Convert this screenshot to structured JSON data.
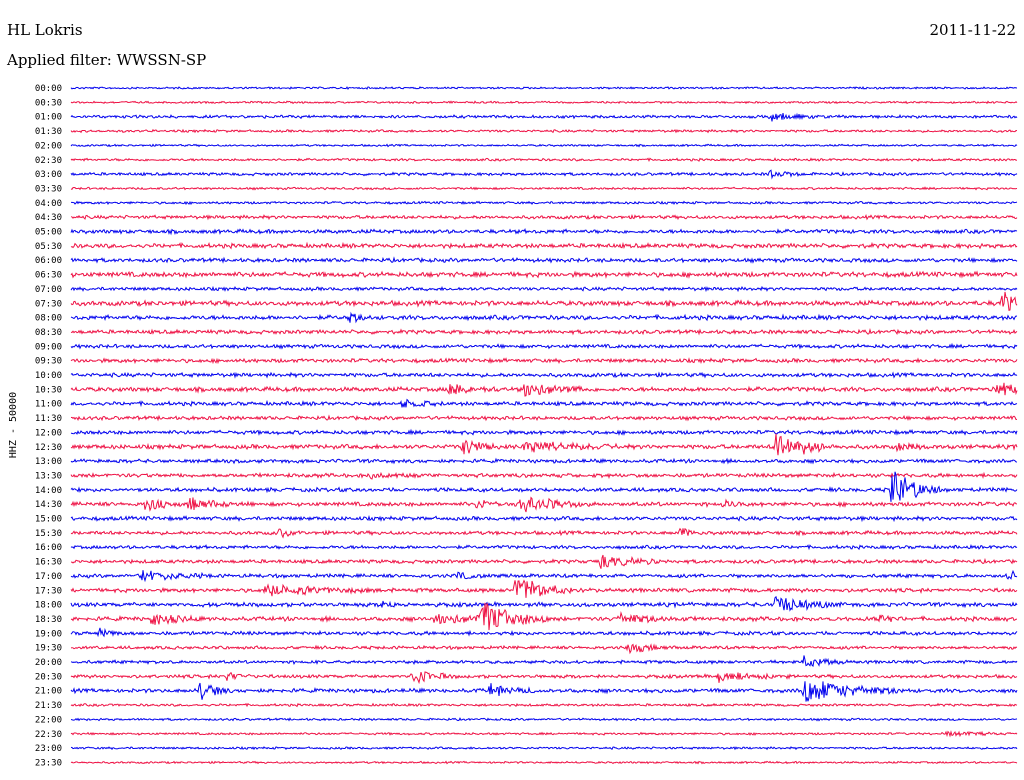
{
  "header": {
    "station": "HL Lokris",
    "date": "2011-11-22",
    "filter_line": "Applied filter: WWSSN-SP"
  },
  "chart_data": {
    "type": "line",
    "chart_kind": "helicorder",
    "ylabel": "HHZ - 50000",
    "row_labels": [
      "00:00",
      "00:30",
      "01:00",
      "01:30",
      "02:00",
      "02:30",
      "03:00",
      "03:30",
      "04:00",
      "04:30",
      "05:00",
      "05:30",
      "06:00",
      "06:30",
      "07:00",
      "07:30",
      "08:00",
      "08:30",
      "09:00",
      "09:30",
      "10:00",
      "10:30",
      "11:00",
      "11:30",
      "12:00",
      "12:30",
      "13:00",
      "13:30",
      "14:00",
      "14:30",
      "15:00",
      "15:30",
      "16:00",
      "16:30",
      "17:00",
      "17:30",
      "18:00",
      "18:30",
      "19:00",
      "19:30",
      "20:00",
      "20:30",
      "21:00",
      "21:30",
      "22:00",
      "22:30",
      "23:00",
      "23:30"
    ],
    "colors": [
      "#0000ee",
      "#ee1144"
    ],
    "grid": false,
    "noise_level": [
      0.8,
      0.8,
      1.2,
      1.0,
      0.8,
      1.0,
      1.2,
      0.9,
      1.0,
      1.4,
      1.6,
      1.8,
      1.6,
      2.0,
      1.4,
      2.0,
      1.8,
      1.6,
      1.5,
      1.6,
      1.6,
      1.8,
      1.6,
      1.5,
      1.6,
      1.8,
      1.5,
      1.6,
      1.6,
      1.7,
      1.6,
      1.5,
      1.4,
      1.5,
      1.5,
      1.6,
      1.7,
      1.7,
      1.5,
      1.3,
      1.3,
      1.4,
      1.6,
      1.0,
      0.9,
      0.9,
      0.9,
      0.8
    ],
    "events": [
      {
        "row": 2,
        "pos": 0.74,
        "amp": 4,
        "dur": 0.02
      },
      {
        "row": 6,
        "pos": 0.74,
        "amp": 3,
        "dur": 0.015
      },
      {
        "row": 15,
        "pos": 0.985,
        "amp": 11,
        "dur": 0.01
      },
      {
        "row": 16,
        "pos": 0.295,
        "amp": 4,
        "dur": 0.01
      },
      {
        "row": 21,
        "pos": 0.4,
        "amp": 5,
        "dur": 0.02
      },
      {
        "row": 21,
        "pos": 0.48,
        "amp": 7,
        "dur": 0.025
      },
      {
        "row": 21,
        "pos": 0.98,
        "amp": 8,
        "dur": 0.015
      },
      {
        "row": 22,
        "pos": 0.35,
        "amp": 3,
        "dur": 0.02
      },
      {
        "row": 25,
        "pos": 0.415,
        "amp": 8,
        "dur": 0.015
      },
      {
        "row": 25,
        "pos": 0.48,
        "amp": 6,
        "dur": 0.04
      },
      {
        "row": 25,
        "pos": 0.745,
        "amp": 14,
        "dur": 0.025
      },
      {
        "row": 25,
        "pos": 0.875,
        "amp": 4,
        "dur": 0.01
      },
      {
        "row": 27,
        "pos": 0.315,
        "amp": 3,
        "dur": 0.02
      },
      {
        "row": 28,
        "pos": 0.868,
        "amp": 20,
        "dur": 0.02
      },
      {
        "row": 29,
        "pos": 0.08,
        "amp": 9,
        "dur": 0.01
      },
      {
        "row": 29,
        "pos": 0.125,
        "amp": 5,
        "dur": 0.025
      },
      {
        "row": 29,
        "pos": 0.43,
        "amp": 4,
        "dur": 0.015
      },
      {
        "row": 29,
        "pos": 0.475,
        "amp": 8,
        "dur": 0.03
      },
      {
        "row": 29,
        "pos": 0.69,
        "amp": 3,
        "dur": 0.01
      },
      {
        "row": 31,
        "pos": 0.22,
        "amp": 4,
        "dur": 0.01
      },
      {
        "row": 31,
        "pos": 0.645,
        "amp": 4,
        "dur": 0.01
      },
      {
        "row": 33,
        "pos": 0.56,
        "amp": 5,
        "dur": 0.03
      },
      {
        "row": 34,
        "pos": 0.075,
        "amp": 5,
        "dur": 0.03
      },
      {
        "row": 34,
        "pos": 0.41,
        "amp": 3,
        "dur": 0.01
      },
      {
        "row": 34,
        "pos": 0.99,
        "amp": 4,
        "dur": 0.01
      },
      {
        "row": 35,
        "pos": 0.205,
        "amp": 5,
        "dur": 0.05
      },
      {
        "row": 35,
        "pos": 0.47,
        "amp": 14,
        "dur": 0.025
      },
      {
        "row": 36,
        "pos": 0.33,
        "amp": 3,
        "dur": 0.01
      },
      {
        "row": 36,
        "pos": 0.745,
        "amp": 8,
        "dur": 0.03
      },
      {
        "row": 37,
        "pos": 0.085,
        "amp": 6,
        "dur": 0.02
      },
      {
        "row": 37,
        "pos": 0.385,
        "amp": 5,
        "dur": 0.03
      },
      {
        "row": 37,
        "pos": 0.432,
        "amp": 16,
        "dur": 0.03
      },
      {
        "row": 37,
        "pos": 0.58,
        "amp": 4,
        "dur": 0.03
      },
      {
        "row": 37,
        "pos": 0.855,
        "amp": 4,
        "dur": 0.01
      },
      {
        "row": 38,
        "pos": 0.03,
        "amp": 3,
        "dur": 0.01
      },
      {
        "row": 39,
        "pos": 0.59,
        "amp": 4,
        "dur": 0.02
      },
      {
        "row": 40,
        "pos": 0.775,
        "amp": 5,
        "dur": 0.02
      },
      {
        "row": 41,
        "pos": 0.165,
        "amp": 4,
        "dur": 0.01
      },
      {
        "row": 41,
        "pos": 0.36,
        "amp": 7,
        "dur": 0.02
      },
      {
        "row": 41,
        "pos": 0.685,
        "amp": 4,
        "dur": 0.03
      },
      {
        "row": 42,
        "pos": 0.137,
        "amp": 10,
        "dur": 0.012
      },
      {
        "row": 42,
        "pos": 0.443,
        "amp": 5,
        "dur": 0.02
      },
      {
        "row": 42,
        "pos": 0.775,
        "amp": 12,
        "dur": 0.04
      },
      {
        "row": 45,
        "pos": 0.92,
        "amp": 2,
        "dur": 0.03
      }
    ]
  }
}
